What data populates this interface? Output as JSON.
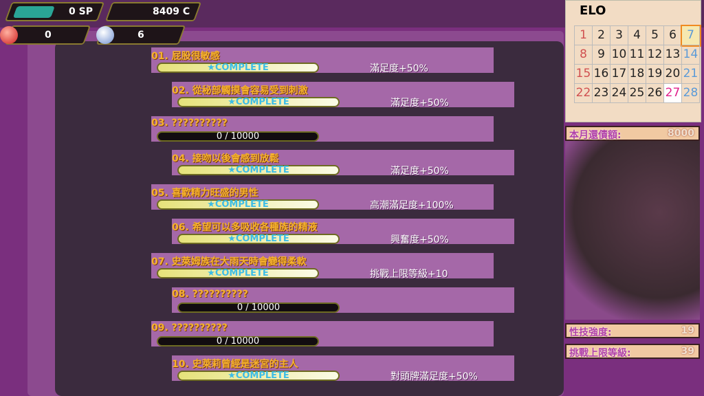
{
  "stats": {
    "sp": "0 SP",
    "coins": "8409 C",
    "red_orbs": "0",
    "blue_orbs": "6"
  },
  "quests": [
    {
      "title": "01.  屁股很敏感",
      "progress": "★COMPLETE",
      "complete": true,
      "effect": "滿足度+50%"
    },
    {
      "title": "02.  從秘部觸摸會容易受到刺激",
      "progress": "★COMPLETE",
      "complete": true,
      "effect": "滿足度+50%"
    },
    {
      "title": "03.  ??????????",
      "progress": "0 / 10000",
      "complete": false,
      "effect": ""
    },
    {
      "title": "04.  接吻以後會感到放鬆",
      "progress": "★COMPLETE",
      "complete": true,
      "effect": "滿足度+50%"
    },
    {
      "title": "05.  喜歡精力旺盛的男性",
      "progress": "★COMPLETE",
      "complete": true,
      "effect": "高潮滿足度+100%"
    },
    {
      "title": "06.  希望可以多吸收各種族的精液",
      "progress": "★COMPLETE",
      "complete": true,
      "effect": "興奮度+50%"
    },
    {
      "title": "07.  史萊姆族在大雨天時會變得柔軟",
      "progress": "★COMPLETE",
      "complete": true,
      "effect": "挑戰上限等級+10"
    },
    {
      "title": "08.  ??????????",
      "progress": "0 / 10000",
      "complete": false,
      "effect": ""
    },
    {
      "title": "09.  ??????????",
      "progress": "0 / 10000",
      "complete": false,
      "effect": ""
    },
    {
      "title": "10.  史萊莉曾經是迷宮的主人",
      "progress": "★COMPLETE",
      "complete": true,
      "effect": "對頭牌滿足度+50%"
    }
  ],
  "calendar": {
    "month": "ELO",
    "days": [
      "1",
      "2",
      "3",
      "4",
      "5",
      "6",
      "7",
      "8",
      "9",
      "10",
      "11",
      "12",
      "13",
      "14",
      "15",
      "16",
      "17",
      "18",
      "19",
      "20",
      "21",
      "22",
      "23",
      "24",
      "25",
      "26",
      "27",
      "28"
    ],
    "current_day": "7",
    "highlight_day": "27"
  },
  "repayment": {
    "label": "本月還債額:",
    "value": "8000"
  },
  "skill": {
    "label": "性技強度:",
    "value": "19"
  },
  "challenge": {
    "label": "挑戰上限等級:",
    "value": "39"
  }
}
